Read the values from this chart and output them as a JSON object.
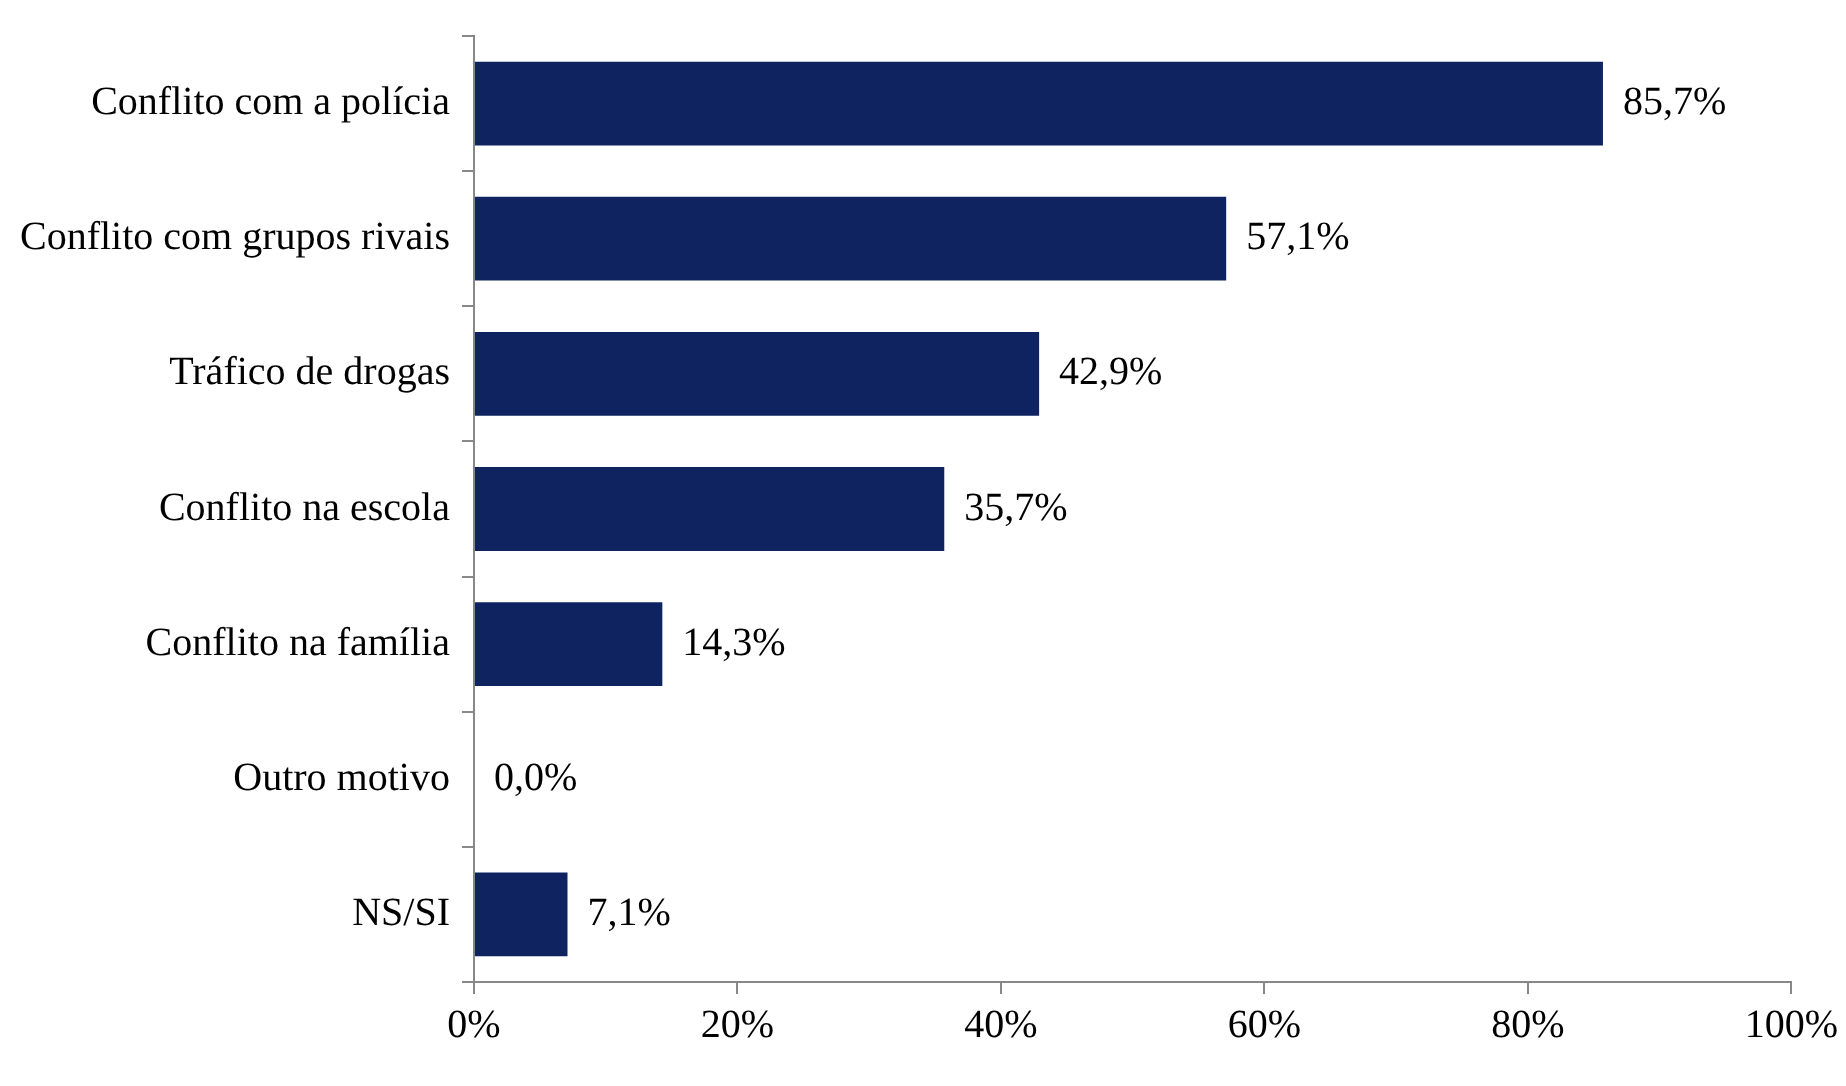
{
  "chart_data": {
    "type": "bar",
    "orientation": "horizontal",
    "categories": [
      "Conflito com a polícia",
      "Conflito com grupos rivais",
      "Tráfico de drogas",
      "Conflito na escola",
      "Conflito na família",
      "Outro motivo",
      "NS/SI"
    ],
    "values": [
      85.7,
      57.1,
      42.9,
      35.7,
      14.3,
      0.0,
      7.1
    ],
    "value_labels": [
      "85,7%",
      "57,1%",
      "42,9%",
      "35,7%",
      "14,3%",
      "0,0%",
      "7,1%"
    ],
    "color": "#0e2360",
    "xlim": [
      0,
      100
    ],
    "xticks": [
      {
        "value": 0,
        "label": "0%"
      },
      {
        "value": 20,
        "label": "20%"
      },
      {
        "value": 40,
        "label": "40%"
      },
      {
        "value": 60,
        "label": "60%"
      },
      {
        "value": 80,
        "label": "80%"
      },
      {
        "value": 100,
        "label": "100%"
      }
    ]
  }
}
